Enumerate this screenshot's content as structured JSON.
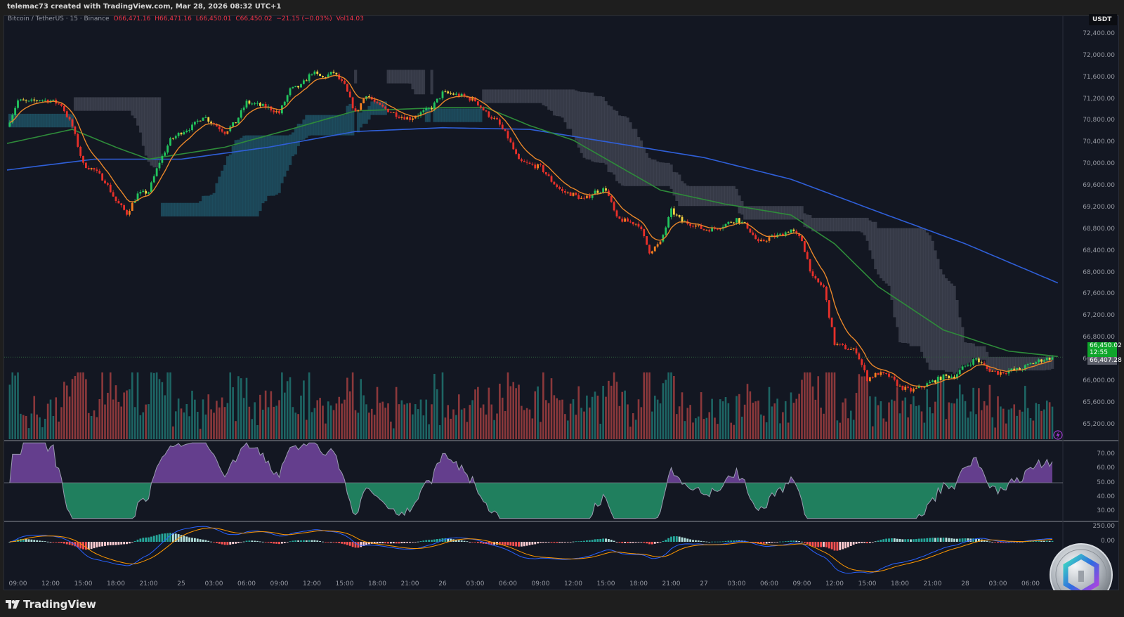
{
  "header": {
    "credit": "telemac73 created with TradingView.com, Mar 28, 2026 08:32 UTC+1"
  },
  "legend": {
    "symbol": "Bitcoin / TetherUS · 15 · Binance",
    "open": "O66,471.16",
    "high": "H66,471.16",
    "low": "L66,450.01",
    "close": "C66,450.02",
    "change": "−21.15 (−0.03%)",
    "volume": "Vol14.03"
  },
  "price_axis": {
    "currency": "USDT",
    "ticks": [
      "72,400.00",
      "72,000.00",
      "71,600.00",
      "71,200.00",
      "70,800.00",
      "70,400.00",
      "70,000.00",
      "69,600.00",
      "69,200.00",
      "68,800.00",
      "68,400.00",
      "68,000.00",
      "67,600.00",
      "67,200.00",
      "66,800.00",
      "66,400.00",
      "66,000.00",
      "65,600.00",
      "65,200.00"
    ],
    "last_price": "66,450.02",
    "countdown": "12:55",
    "secondary_price": "66,407.28"
  },
  "rsi_axis": {
    "ticks": [
      "70.00",
      "60.00",
      "50.00",
      "40.00",
      "30.00"
    ]
  },
  "macd_axis": {
    "ticks": [
      "250.00",
      "0.00"
    ]
  },
  "time_axis": {
    "ticks": [
      "09:00",
      "12:00",
      "15:00",
      "18:00",
      "21:00",
      "25",
      "03:00",
      "06:00",
      "09:00",
      "12:00",
      "15:00",
      "18:00",
      "21:00",
      "26",
      "03:00",
      "06:00",
      "09:00",
      "12:00",
      "15:00",
      "18:00",
      "21:00",
      "27",
      "03:00",
      "06:00",
      "09:00",
      "12:00",
      "15:00",
      "18:00",
      "21:00",
      "28",
      "03:00",
      "06:00"
    ]
  },
  "footer": {
    "brand": "TradingView"
  },
  "colors": {
    "background": "#131722",
    "up_strong": "#22c55e",
    "up_weak": "#f5d142",
    "down_weak": "#f57f1f",
    "down_strong": "#e8302a",
    "ema_fast": "#e8862a",
    "ma_mid": "#2e8b3a",
    "ma_long": "#2f5fd8",
    "last_price": "#0fa52b"
  },
  "chart_data": {
    "type": "line",
    "title": "",
    "xlabel": "",
    "ylabel": "",
    "ylim": [
      65000,
      72600
    ],
    "grid": false,
    "x_start": "Mar 24 08:00",
    "x_step": "1h",
    "series": [
      {
        "key": "close",
        "values": [
          70700,
          71180,
          71150,
          71200,
          71180,
          71100,
          70700,
          70000,
          69900,
          69700,
          69330,
          69100,
          69450,
          69500,
          70050,
          70450,
          70600,
          70700,
          70900,
          70750,
          70600,
          70780,
          71150,
          71100,
          71050,
          70950,
          71380,
          71450,
          71700,
          71600,
          71700,
          71450,
          70950,
          71300,
          71100,
          71000,
          70900,
          70850,
          70950,
          71050,
          71320,
          71300,
          71250,
          71180,
          70950,
          70800,
          70500,
          70060,
          70000,
          69950,
          69700,
          69500,
          69450,
          69350,
          69500,
          69550,
          69000,
          68950,
          68900,
          68400,
          68550,
          69150,
          68950,
          68900,
          68800,
          68820,
          68900,
          69000,
          68850,
          68550,
          68650,
          68700,
          68800,
          68600,
          67900,
          67740,
          66700,
          66620,
          66560,
          66050,
          66150,
          66100,
          65900,
          65830,
          65900,
          66000,
          66090,
          66100,
          66290,
          66420,
          66230,
          66160,
          66200,
          66220,
          66320,
          66400,
          66450.02
        ]
      },
      {
        "key": "ma_mid",
        "hours": [
          0,
          6,
          10,
          13,
          20,
          26,
          32,
          40,
          44,
          48,
          52,
          56,
          60,
          66,
          72,
          76,
          80,
          86,
          92,
          96.6
        ],
        "values": [
          70390,
          70650,
          70320,
          70100,
          70320,
          70650,
          70990,
          71050,
          71050,
          70720,
          70450,
          69990,
          69530,
          69270,
          69070,
          68540,
          67750,
          66950,
          66560,
          66460
        ]
      },
      {
        "key": "ma_long",
        "hours": [
          0,
          8,
          16,
          24,
          32,
          40,
          48,
          56,
          64,
          72,
          80,
          88,
          96.6
        ],
        "values": [
          69900,
          70100,
          70100,
          70320,
          70610,
          70680,
          70650,
          70390,
          70130,
          69730,
          69130,
          68540,
          67810
        ]
      }
    ],
    "rsi": {
      "levels": [
        70,
        60,
        50,
        40,
        30
      ],
      "midline": 50
    },
    "macd": {
      "zero": 0
    }
  }
}
